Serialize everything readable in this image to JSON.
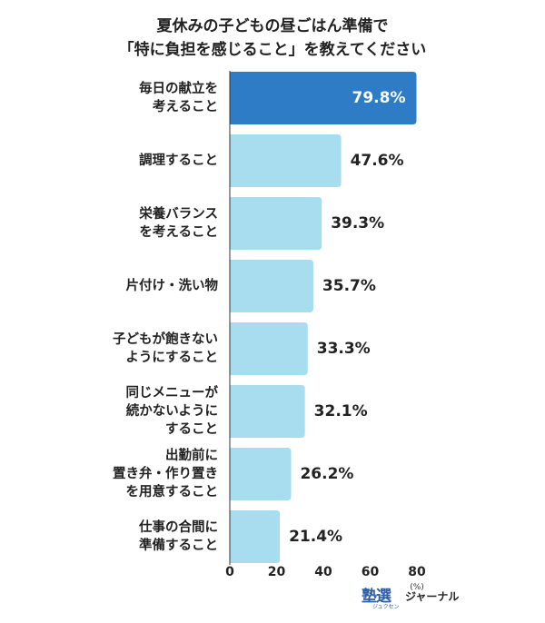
{
  "title_line1": "夏休みの子どもの昼ごはん準備で",
  "title_line2": "「特に負担を感じること」を教えてください",
  "brand": {
    "logo_main": "塾選",
    "logo_sub": "ジュクセン",
    "name": "ジャーナル"
  },
  "colors": {
    "highlight": "#2e7cc6",
    "bar": "#a8dcef",
    "text": "#222222",
    "axis": "#333333"
  },
  "chart_data": {
    "type": "bar",
    "orientation": "horizontal",
    "categories": [
      [
        "毎日の献立を",
        "考えること"
      ],
      [
        "調理すること"
      ],
      [
        "栄養バランス",
        "を考えること"
      ],
      [
        "片付け・洗い物"
      ],
      [
        "子どもが飽きない",
        "ようにすること"
      ],
      [
        "同じメニューが",
        "続かないように",
        "すること"
      ],
      [
        "出勤前に",
        "置き弁・作り置き",
        "を用意すること"
      ],
      [
        "仕事の合間に",
        "準備すること"
      ]
    ],
    "values": [
      79.8,
      47.6,
      39.3,
      35.7,
      33.3,
      32.1,
      26.2,
      21.4
    ],
    "value_labels": [
      "79.8%",
      "47.6%",
      "39.3%",
      "35.7%",
      "33.3%",
      "32.1%",
      "26.2%",
      "21.4%"
    ],
    "xlim": [
      0,
      80
    ],
    "xticks": [
      "0",
      "20",
      "40",
      "60",
      "80"
    ],
    "unit": "(%)",
    "highlight_index": 0
  }
}
